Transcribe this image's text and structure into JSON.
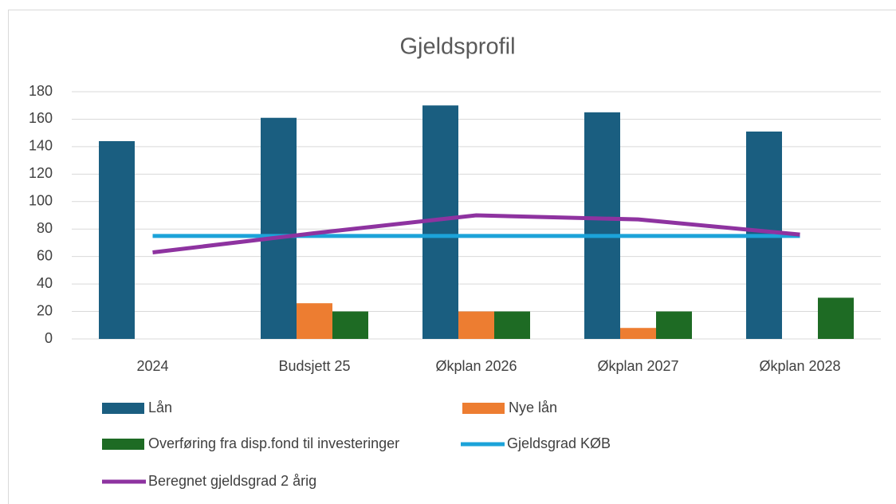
{
  "chart_data": {
    "type": "bar",
    "title": "Gjeldsprofil",
    "categories": [
      "2024",
      "Budsjett 25",
      "Økplan 2026",
      "Økplan 2027",
      "Økplan 2028"
    ],
    "series": [
      {
        "name": "Lån",
        "type": "bar",
        "color": "#1a5e80",
        "values": [
          144,
          161,
          170,
          165,
          151
        ]
      },
      {
        "name": "Nye lån",
        "type": "bar",
        "color": "#ed7d31",
        "values": [
          null,
          26,
          20,
          8,
          null
        ]
      },
      {
        "name": "Overføring fra disp.fond til investeringer",
        "type": "bar",
        "color": "#1e6b24",
        "values": [
          null,
          20,
          20,
          20,
          30
        ]
      },
      {
        "name": "Gjeldsgrad KØB",
        "type": "line",
        "color": "#1ca3d9",
        "values": [
          75,
          75,
          75,
          75,
          75
        ]
      },
      {
        "name": "Beregnet gjeldsgrad 2 årig",
        "type": "line",
        "color": "#8e33a0",
        "values": [
          63,
          77,
          90,
          87,
          76
        ]
      }
    ],
    "ylim": [
      0,
      180
    ],
    "yticks": [
      0,
      20,
      40,
      60,
      80,
      100,
      120,
      140,
      160,
      180
    ],
    "grid": true,
    "legend": "bottom"
  }
}
